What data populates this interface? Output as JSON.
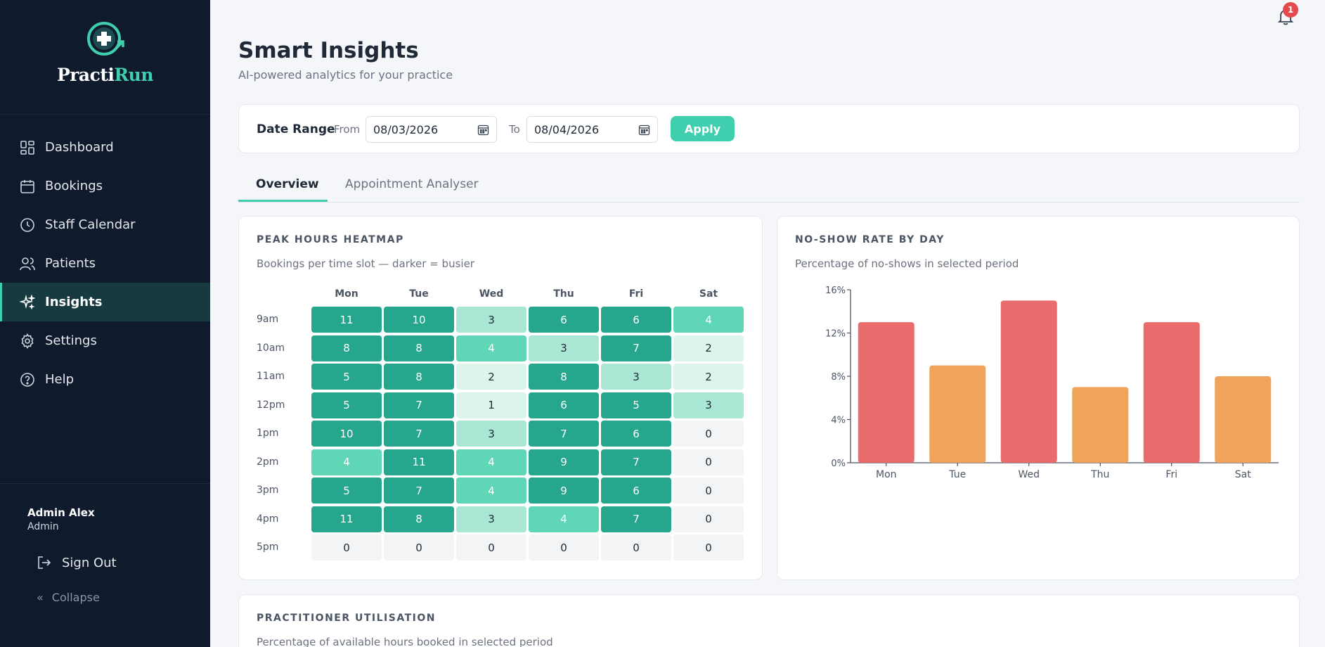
{
  "app": {
    "name_part1": "Practi",
    "name_part2": "Run"
  },
  "nav": [
    {
      "label": "Dashboard",
      "icon": "dashboard-icon"
    },
    {
      "label": "Bookings",
      "icon": "calendar-icon"
    },
    {
      "label": "Staff Calendar",
      "icon": "clock-icon"
    },
    {
      "label": "Patients",
      "icon": "users-icon"
    },
    {
      "label": "Insights",
      "icon": "sparkles-icon",
      "active": true
    },
    {
      "label": "Settings",
      "icon": "gear-icon"
    },
    {
      "label": "Help",
      "icon": "help-icon"
    }
  ],
  "user": {
    "name": "Admin Alex",
    "role": "Admin"
  },
  "signout_label": "Sign Out",
  "collapse_label": "Collapse",
  "notifications": {
    "count": "1"
  },
  "page": {
    "title": "Smart Insights",
    "subtitle": "AI-powered analytics for your practice"
  },
  "date_range": {
    "label": "Date Range",
    "from_label": "From",
    "from_value": "08/03/2026",
    "to_label": "To",
    "to_value": "08/04/2026",
    "apply_label": "Apply"
  },
  "tabs": [
    {
      "label": "Overview",
      "active": true
    },
    {
      "label": "Appointment Analyser",
      "active": false
    }
  ],
  "heatmap": {
    "title": "PEAK HOURS HEATMAP",
    "subtitle": "Bookings per time slot — darker = busier",
    "days": [
      "Mon",
      "Tue",
      "Wed",
      "Thu",
      "Fri",
      "Sat"
    ],
    "hours": [
      "9am",
      "10am",
      "11am",
      "12pm",
      "1pm",
      "2pm",
      "3pm",
      "4pm",
      "5pm"
    ],
    "values": [
      [
        11,
        10,
        3,
        6,
        6,
        4
      ],
      [
        8,
        8,
        4,
        3,
        7,
        2
      ],
      [
        5,
        8,
        2,
        8,
        3,
        2
      ],
      [
        5,
        7,
        1,
        6,
        5,
        3
      ],
      [
        10,
        7,
        3,
        7,
        6,
        0
      ],
      [
        4,
        11,
        4,
        9,
        7,
        0
      ],
      [
        5,
        7,
        4,
        9,
        6,
        0
      ],
      [
        11,
        8,
        3,
        4,
        7,
        0
      ],
      [
        0,
        0,
        0,
        0,
        0,
        0
      ]
    ],
    "colors": {
      "dark": "#26a68c",
      "mid": "#5fd6b6",
      "light": "#a9e6d4",
      "faint": "#dcf5ec",
      "empty": "#f3f4f6"
    }
  },
  "noshow": {
    "title": "NO-SHOW RATE BY DAY",
    "subtitle": "Percentage of no-shows in selected period"
  },
  "chart_data": {
    "type": "bar",
    "categories": [
      "Mon",
      "Tue",
      "Wed",
      "Thu",
      "Fri",
      "Sat"
    ],
    "values": [
      13,
      9,
      15,
      7,
      13,
      8
    ],
    "ylim": [
      0,
      16
    ],
    "yticks": [
      "0%",
      "4%",
      "8%",
      "12%",
      "16%"
    ],
    "bar_colors": [
      "#e96b6b",
      "#f0a35a",
      "#e96b6b",
      "#f0a35a",
      "#e96b6b",
      "#f0a35a"
    ],
    "grid": false
  },
  "utilisation": {
    "title": "PRACTITIONER UTILISATION",
    "subtitle": "Percentage of available hours booked in selected period"
  }
}
